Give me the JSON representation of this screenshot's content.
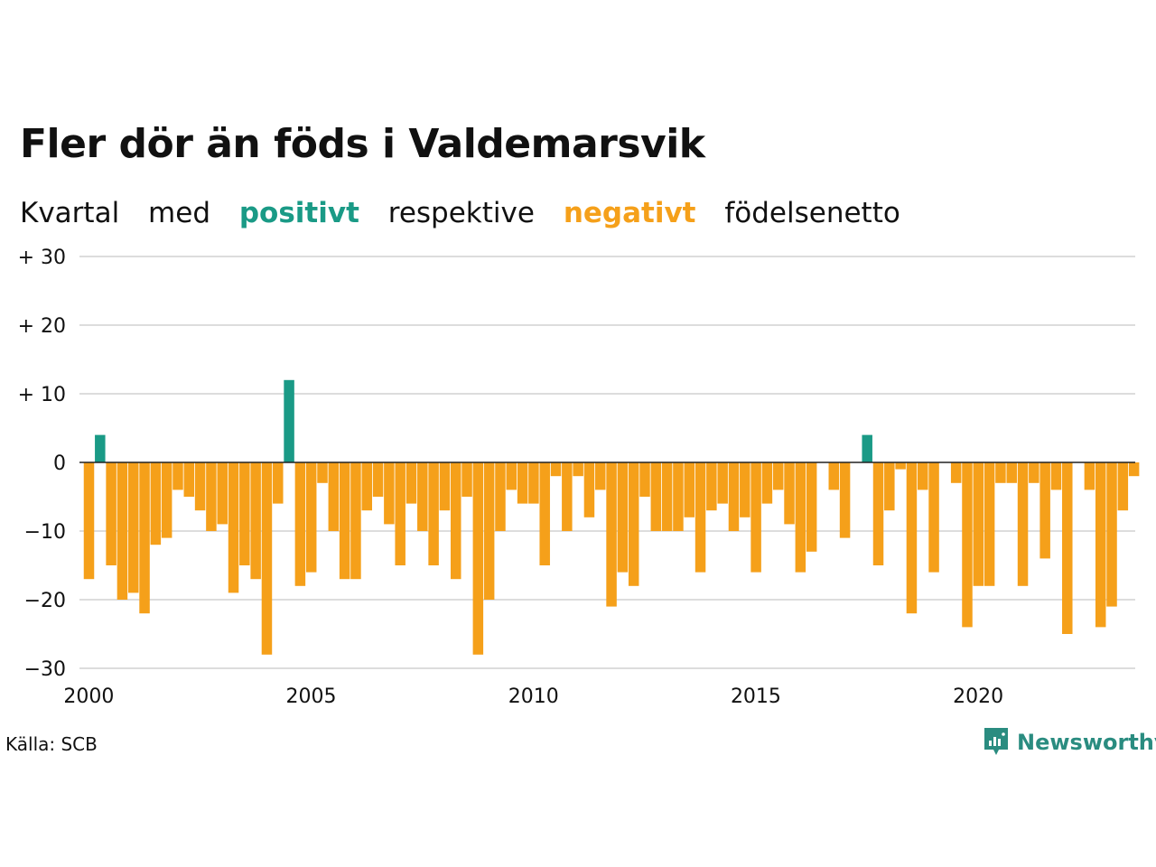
{
  "title": "Fler dör än föds i Valdemarsvik",
  "subtitle": {
    "part1": "Kvartal",
    "part2": "med",
    "positive": "positivt",
    "part3": "respektive",
    "negative": "negativt",
    "part4": "födelsenetto"
  },
  "source": "Källa: SCB",
  "brand": "Newsworthy",
  "colors": {
    "positive": "#1a9a86",
    "negative": "#f5a01a",
    "brand": "#2a8c80"
  },
  "chart_data": {
    "type": "bar",
    "x_start": "2000 Q1",
    "frequency": "quarterly",
    "y_ticks": [
      {
        "value": 30,
        "label": "+ 30"
      },
      {
        "value": 20,
        "label": "+ 20"
      },
      {
        "value": 10,
        "label": "+ 10"
      },
      {
        "value": 0,
        "label": "0"
      },
      {
        "value": -10,
        "label": "−10"
      },
      {
        "value": -20,
        "label": "−20"
      },
      {
        "value": -30,
        "label": "−30"
      }
    ],
    "x_ticks": [
      "2000",
      "2005",
      "2010",
      "2015",
      "2020"
    ],
    "ylim": [
      -30,
      30
    ],
    "grid": true,
    "values": [
      -17,
      4,
      -15,
      -20,
      -19,
      -22,
      -12,
      -11,
      -4,
      -5,
      -7,
      -10,
      -9,
      -19,
      -15,
      -17,
      -28,
      -6,
      12,
      -18,
      -16,
      -3,
      -10,
      -17,
      -17,
      -7,
      -5,
      -9,
      -15,
      -6,
      -10,
      -15,
      -7,
      -17,
      -5,
      -28,
      -20,
      -10,
      -4,
      -6,
      -6,
      -15,
      -2,
      -10,
      -2,
      -8,
      -4,
      -21,
      -16,
      -18,
      -5,
      -10,
      -10,
      -10,
      -8,
      -16,
      -7,
      -6,
      -10,
      -8,
      -16,
      -6,
      -4,
      -9,
      -16,
      -13,
      0,
      -4,
      -11,
      0,
      4,
      -15,
      -7,
      -1,
      -22,
      -4,
      -16,
      0,
      -3,
      -24,
      -18,
      -18,
      -3,
      -3,
      -18,
      -3,
      -14,
      -4,
      -25,
      0,
      -4,
      -24,
      -21,
      -7,
      -2
    ]
  }
}
